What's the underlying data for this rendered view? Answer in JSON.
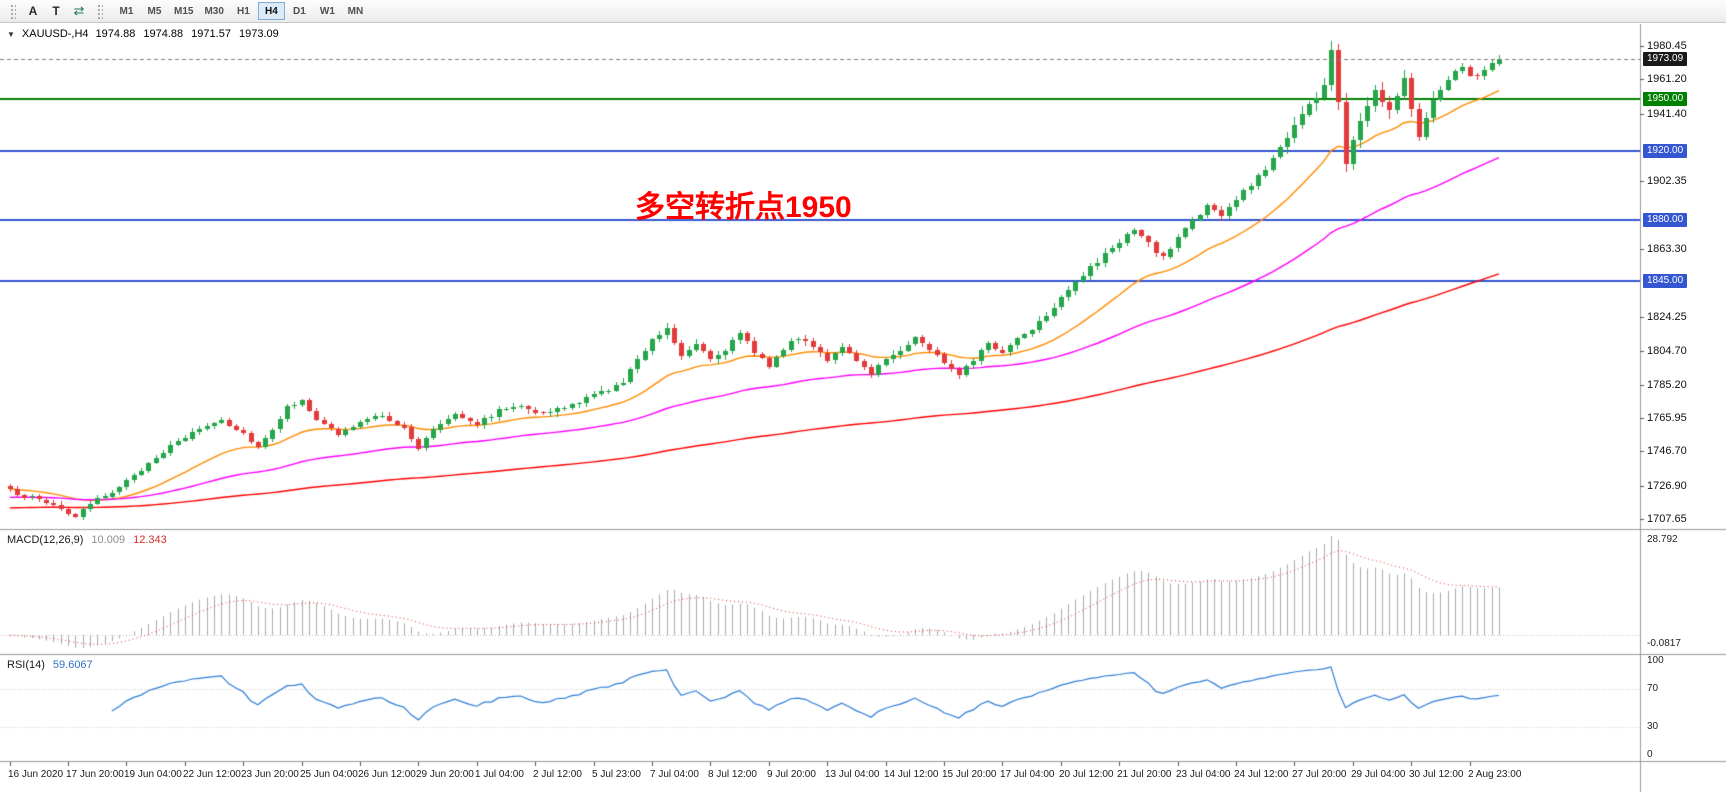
{
  "toolbar": {
    "tool_buttons": [
      {
        "id": "text-tool",
        "label": "A"
      },
      {
        "id": "text-label-tool",
        "label": "T"
      },
      {
        "id": "arrows-tool",
        "label": "⇄"
      }
    ],
    "timeframes": [
      "M1",
      "M5",
      "M15",
      "M30",
      "H1",
      "H4",
      "D1",
      "W1",
      "MN"
    ],
    "active_timeframe": "H4"
  },
  "chart": {
    "symbol_header": "XAUUSD-,H4",
    "ohlc_text": "1974.88 1974.88 1971.57 1973.09",
    "menu_arrow_icon": "▼",
    "annotation": {
      "text": "多空转折点1950",
      "color": "#FF0000"
    }
  },
  "chart_data": {
    "type": "candlestick",
    "symbol": "XAUUSD-",
    "timeframe": "H4",
    "open": "1974.88",
    "high": "1974.88",
    "low": "1971.57",
    "close": "1973.09",
    "bars": 205,
    "seed": 987654321,
    "colors": {
      "up": "#26A64A",
      "down": "#E23B3B",
      "background": "#FFFFFF"
    },
    "price_anchors": [
      [
        0,
        1724
      ],
      [
        3,
        1720
      ],
      [
        6,
        1716
      ],
      [
        9,
        1709
      ],
      [
        11,
        1716
      ],
      [
        14,
        1724
      ],
      [
        17,
        1732
      ],
      [
        20,
        1744
      ],
      [
        23,
        1752
      ],
      [
        26,
        1760
      ],
      [
        29,
        1765
      ],
      [
        32,
        1757
      ],
      [
        34,
        1749
      ],
      [
        36,
        1760
      ],
      [
        38,
        1772
      ],
      [
        40,
        1777
      ],
      [
        42,
        1764
      ],
      [
        45,
        1757
      ],
      [
        48,
        1763
      ],
      [
        51,
        1768
      ],
      [
        54,
        1760
      ],
      [
        56,
        1748
      ],
      [
        58,
        1760
      ],
      [
        61,
        1769
      ],
      [
        64,
        1763
      ],
      [
        67,
        1770
      ],
      [
        70,
        1774
      ],
      [
        73,
        1768
      ],
      [
        76,
        1772
      ],
      [
        79,
        1777
      ],
      [
        82,
        1783
      ],
      [
        84,
        1786
      ],
      [
        86,
        1800
      ],
      [
        88,
        1812
      ],
      [
        90,
        1818
      ],
      [
        92,
        1802
      ],
      [
        94,
        1810
      ],
      [
        96,
        1800
      ],
      [
        98,
        1806
      ],
      [
        100,
        1814
      ],
      [
        102,
        1804
      ],
      [
        104,
        1797
      ],
      [
        106,
        1806
      ],
      [
        108,
        1812
      ],
      [
        110,
        1808
      ],
      [
        112,
        1800
      ],
      [
        114,
        1806
      ],
      [
        116,
        1798
      ],
      [
        118,
        1792
      ],
      [
        120,
        1800
      ],
      [
        122,
        1806
      ],
      [
        124,
        1812
      ],
      [
        126,
        1806
      ],
      [
        128,
        1798
      ],
      [
        130,
        1792
      ],
      [
        132,
        1800
      ],
      [
        134,
        1808
      ],
      [
        136,
        1804
      ],
      [
        138,
        1812
      ],
      [
        140,
        1818
      ],
      [
        142,
        1826
      ],
      [
        144,
        1836
      ],
      [
        146,
        1845
      ],
      [
        148,
        1852
      ],
      [
        150,
        1860
      ],
      [
        152,
        1868
      ],
      [
        154,
        1874
      ],
      [
        156,
        1866
      ],
      [
        158,
        1858
      ],
      [
        160,
        1870
      ],
      [
        162,
        1880
      ],
      [
        164,
        1888
      ],
      [
        166,
        1882
      ],
      [
        168,
        1892
      ],
      [
        170,
        1900
      ],
      [
        172,
        1910
      ],
      [
        174,
        1922
      ],
      [
        176,
        1936
      ],
      [
        178,
        1946
      ],
      [
        180,
        1958
      ],
      [
        181,
        1978
      ],
      [
        182,
        1946
      ],
      [
        183,
        1914
      ],
      [
        185,
        1940
      ],
      [
        187,
        1955
      ],
      [
        189,
        1946
      ],
      [
        191,
        1960
      ],
      [
        193,
        1930
      ],
      [
        195,
        1948
      ],
      [
        197,
        1962
      ],
      [
        199,
        1968
      ],
      [
        201,
        1962
      ],
      [
        203,
        1970
      ],
      [
        204,
        1973.09
      ]
    ],
    "y_range": {
      "max": 1993,
      "min": 1702
    },
    "y_axis_labels": [
      "1980.45",
      "1961.20",
      "1941.40",
      "1902.35",
      "1863.30",
      "1824.25",
      "1804.70",
      "1785.20",
      "1765.95",
      "1746.70",
      "1726.90",
      "1707.65"
    ],
    "price_lines": [
      {
        "price": 1973.09,
        "label": "1973.09",
        "color": "#808080",
        "style": "dashed",
        "badge": "#1A1A1A"
      },
      {
        "price": 1950.0,
        "label": "1950.00",
        "color": "#008000",
        "style": "solid",
        "badge": "#008000"
      },
      {
        "price": 1920.0,
        "label": "1920.00",
        "color": "#3456D1",
        "style": "solid",
        "badge": "#3456D1"
      },
      {
        "price": 1880.0,
        "label": "1880.00",
        "color": "#3456D1",
        "style": "solid",
        "badge": "#3456D1"
      },
      {
        "price": 1845.0,
        "label": "1845.00",
        "color": "#3456D1",
        "style": "solid",
        "badge": "#3456D1"
      }
    ],
    "x_labels": [
      {
        "bar": 0,
        "text": "16 Jun 2020"
      },
      {
        "bar": 8,
        "text": "17 Jun 20:00"
      },
      {
        "bar": 16,
        "text": "19 Jun 04:00"
      },
      {
        "bar": 24,
        "text": "22 Jun 12:00"
      },
      {
        "bar": 32,
        "text": "23 Jun 20:00"
      },
      {
        "bar": 40,
        "text": "25 Jun 04:00"
      },
      {
        "bar": 48,
        "text": "26 Jun 12:00"
      },
      {
        "bar": 56,
        "text": "29 Jun 20:00"
      },
      {
        "bar": 64,
        "text": "1 Jul 04:00"
      },
      {
        "bar": 72,
        "text": "2 Jul 12:00"
      },
      {
        "bar": 80,
        "text": "5 Jul 23:00"
      },
      {
        "bar": 88,
        "text": "7 Jul 04:00"
      },
      {
        "bar": 96,
        "text": "8 Jul 12:00"
      },
      {
        "bar": 104,
        "text": "9 Jul 20:00"
      },
      {
        "bar": 112,
        "text": "13 Jul 04:00"
      },
      {
        "bar": 120,
        "text": "14 Jul 12:00"
      },
      {
        "bar": 128,
        "text": "15 Jul 20:00"
      },
      {
        "bar": 136,
        "text": "17 Jul 04:00"
      },
      {
        "bar": 144,
        "text": "20 Jul 12:00"
      },
      {
        "bar": 152,
        "text": "21 Jul 20:00"
      },
      {
        "bar": 160,
        "text": "23 Jul 04:00"
      },
      {
        "bar": 168,
        "text": "24 Jul 12:00"
      },
      {
        "bar": 176,
        "text": "27 Jul 20:00"
      },
      {
        "bar": 184,
        "text": "29 Jul 04:00"
      },
      {
        "bar": 192,
        "text": "30 Jul 12:00"
      },
      {
        "bar": 200,
        "text": "2 Aug 23:00"
      }
    ],
    "moving_averages": [
      {
        "period": 20,
        "color": "#FF8C00"
      },
      {
        "period": 60,
        "color": "#FF00FF"
      },
      {
        "period": 170,
        "color": "#FF0000"
      }
    ],
    "macd": {
      "label": "MACD(12,26,9)",
      "value_main": "10.009",
      "value_signal": "12.343",
      "fast": 12,
      "slow": 26,
      "signal": 9,
      "axis_labels": [
        "28.792",
        "-0.0817"
      ],
      "histogram_color": "#ABABAB",
      "signal_color": "#E53535"
    },
    "rsi": {
      "label": "RSI(14)",
      "value": "59.6067",
      "period": 14,
      "levels": [
        100,
        70,
        30,
        0
      ],
      "line_color": "#2F7ED8"
    }
  }
}
